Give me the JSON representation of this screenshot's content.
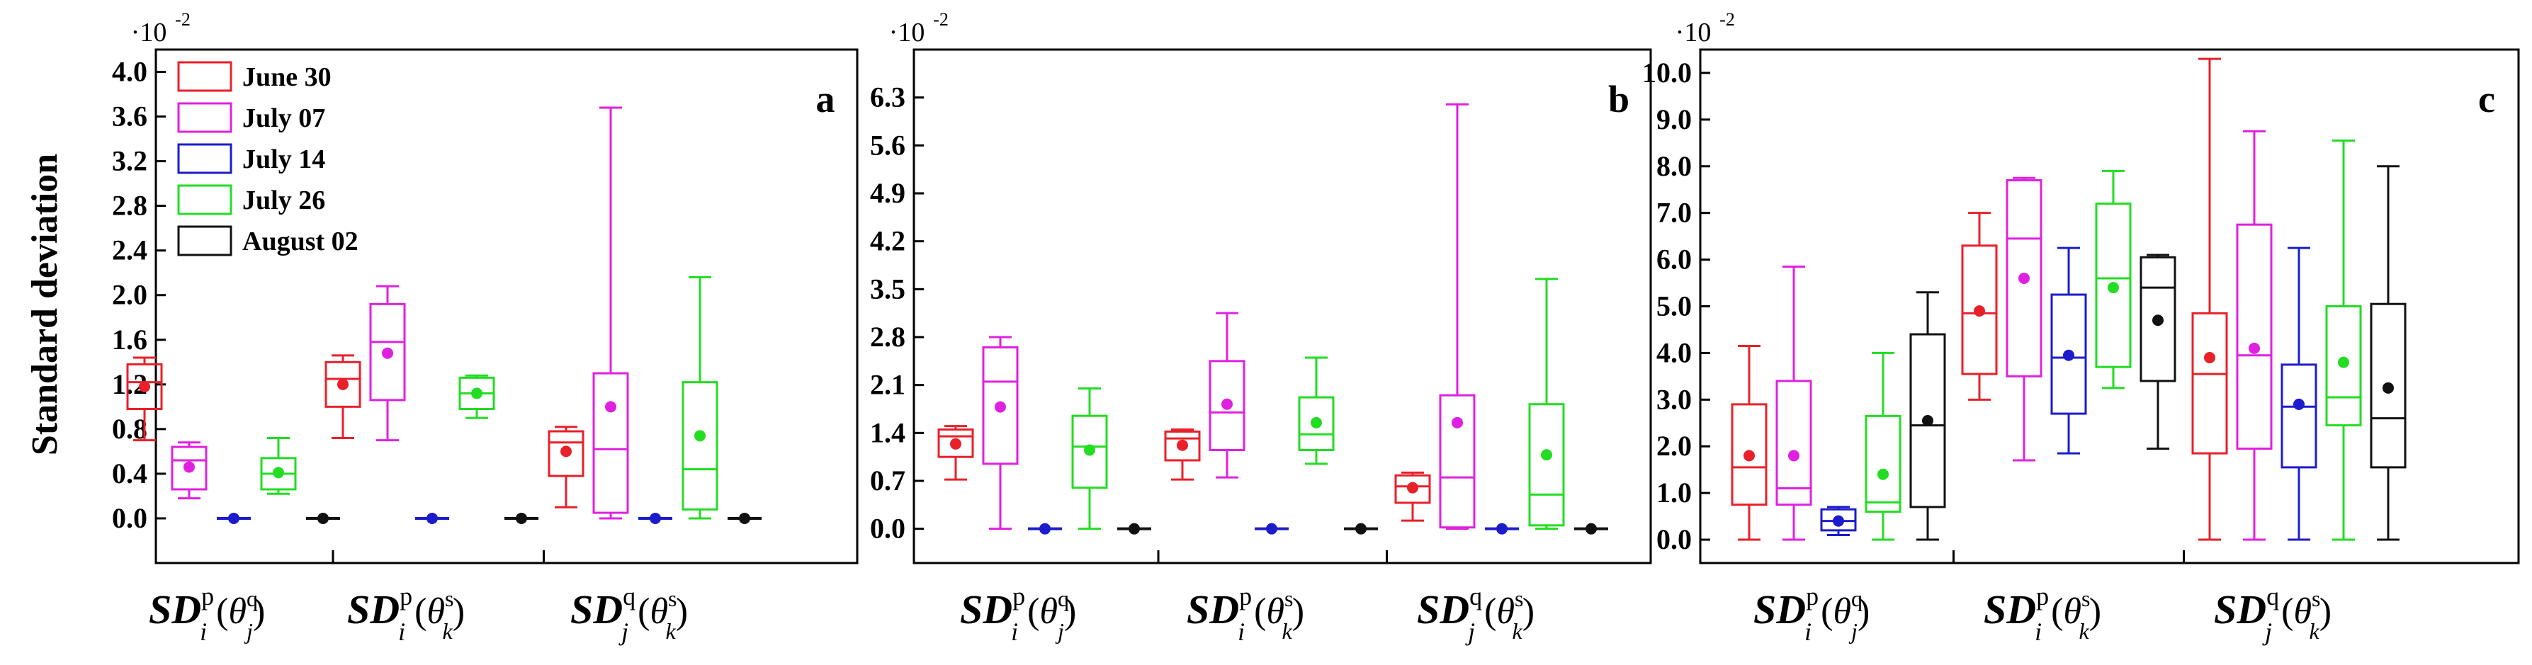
{
  "figure": {
    "ylabel": "Standard deviation",
    "exponent_label": "·10",
    "exponent_power": "-2",
    "groups": [
      {
        "main": "SD",
        "sup": "p",
        "sub": "i",
        "theta_sup": "q",
        "theta_sub": "j"
      },
      {
        "main": "SD",
        "sup": "p",
        "sub": "i",
        "theta_sup": "s",
        "theta_sub": "k"
      },
      {
        "main": "SD",
        "sup": "q",
        "sub": "j",
        "theta_sup": "s",
        "theta_sub": "k"
      }
    ]
  },
  "legend": [
    {
      "label": "June 30",
      "color": "#e8202a"
    },
    {
      "label": "July 07",
      "color": "#e020e0"
    },
    {
      "label": "July 14",
      "color": "#1c1ccc"
    },
    {
      "label": "July 26",
      "color": "#22dd22"
    },
    {
      "label": "August 02",
      "color": "#111111"
    }
  ],
  "chart_data": [
    {
      "type": "box",
      "panel_label": "a",
      "ylabel": "Standard deviation",
      "unit_multiplier": "10^-2",
      "ylim": [
        -0.4,
        4.2
      ],
      "yticks": [
        "0.0",
        "0.4",
        "0.8",
        "1.2",
        "1.6",
        "2.0",
        "2.4",
        "2.8",
        "3.2",
        "3.6",
        "4.0"
      ],
      "categories": [
        "SDip(θjq)",
        "SDip(θks)",
        "SDjq(θks)"
      ],
      "series": [
        {
          "name": "June 30",
          "boxes": [
            {
              "min": 0.7,
              "q1": 0.98,
              "median": 1.22,
              "q3": 1.38,
              "max": 1.44,
              "mean": 1.18
            },
            {
              "min": 0.72,
              "q1": 1.0,
              "median": 1.25,
              "q3": 1.4,
              "max": 1.46,
              "mean": 1.2
            },
            {
              "min": 0.1,
              "q1": 0.38,
              "median": 0.68,
              "q3": 0.78,
              "max": 0.82,
              "mean": 0.6
            }
          ]
        },
        {
          "name": "July 07",
          "boxes": [
            {
              "min": 0.18,
              "q1": 0.26,
              "median": 0.52,
              "q3": 0.64,
              "max": 0.68,
              "mean": 0.46
            },
            {
              "min": 0.7,
              "q1": 1.06,
              "median": 1.58,
              "q3": 1.92,
              "max": 2.08,
              "mean": 1.48
            },
            {
              "min": 0.0,
              "q1": 0.05,
              "median": 0.62,
              "q3": 1.3,
              "max": 3.68,
              "mean": 1.0
            }
          ]
        },
        {
          "name": "July 14",
          "boxes": [
            {
              "min": 0.0,
              "q1": 0.0,
              "median": 0.0,
              "q3": 0.0,
              "max": 0.0,
              "mean": 0.0
            },
            {
              "min": 0.0,
              "q1": 0.0,
              "median": 0.0,
              "q3": 0.0,
              "max": 0.0,
              "mean": 0.0
            },
            {
              "min": 0.0,
              "q1": 0.0,
              "median": 0.0,
              "q3": 0.0,
              "max": 0.0,
              "mean": 0.0
            }
          ]
        },
        {
          "name": "July 26",
          "boxes": [
            {
              "min": 0.22,
              "q1": 0.26,
              "median": 0.4,
              "q3": 0.54,
              "max": 0.72,
              "mean": 0.41
            },
            {
              "min": 0.9,
              "q1": 0.98,
              "median": 1.12,
              "q3": 1.26,
              "max": 1.28,
              "mean": 1.12
            },
            {
              "min": 0.0,
              "q1": 0.08,
              "median": 0.44,
              "q3": 1.22,
              "max": 2.16,
              "mean": 0.74
            }
          ]
        },
        {
          "name": "August 02",
          "boxes": [
            {
              "min": 0.0,
              "q1": 0.0,
              "median": 0.0,
              "q3": 0.0,
              "max": 0.0,
              "mean": 0.0
            },
            {
              "min": 0.0,
              "q1": 0.0,
              "median": 0.0,
              "q3": 0.0,
              "max": 0.0,
              "mean": 0.0
            },
            {
              "min": 0.0,
              "q1": 0.0,
              "median": 0.0,
              "q3": 0.0,
              "max": 0.0,
              "mean": 0.0
            }
          ]
        }
      ]
    },
    {
      "type": "box",
      "panel_label": "b",
      "unit_multiplier": "10^-2",
      "ylim": [
        -0.5,
        7.0
      ],
      "yticks": [
        "0.0",
        "0.7",
        "1.4",
        "2.1",
        "2.8",
        "3.5",
        "4.2",
        "4.9",
        "5.6",
        "6.3"
      ],
      "categories": [
        "SDip(θjq)",
        "SDip(θks)",
        "SDjq(θks)"
      ],
      "series": [
        {
          "name": "June 30",
          "boxes": [
            {
              "min": 0.72,
              "q1": 1.05,
              "median": 1.35,
              "q3": 1.45,
              "max": 1.5,
              "mean": 1.24
            },
            {
              "min": 0.72,
              "q1": 1.0,
              "median": 1.32,
              "q3": 1.42,
              "max": 1.45,
              "mean": 1.22
            },
            {
              "min": 0.12,
              "q1": 0.38,
              "median": 0.62,
              "q3": 0.78,
              "max": 0.82,
              "mean": 0.6
            }
          ]
        },
        {
          "name": "July 07",
          "boxes": [
            {
              "min": 0.0,
              "q1": 0.95,
              "median": 2.15,
              "q3": 2.65,
              "max": 2.8,
              "mean": 1.78
            },
            {
              "min": 0.75,
              "q1": 1.15,
              "median": 1.7,
              "q3": 2.45,
              "max": 3.15,
              "mean": 1.82
            },
            {
              "min": 0.0,
              "q1": 0.02,
              "median": 0.75,
              "q3": 1.95,
              "max": 6.2,
              "mean": 1.55
            }
          ]
        },
        {
          "name": "July 14",
          "boxes": [
            {
              "min": 0.0,
              "q1": 0.0,
              "median": 0.0,
              "q3": 0.0,
              "max": 0.0,
              "mean": 0.0
            },
            {
              "min": 0.0,
              "q1": 0.0,
              "median": 0.0,
              "q3": 0.0,
              "max": 0.0,
              "mean": 0.0
            },
            {
              "min": 0.0,
              "q1": 0.0,
              "median": 0.0,
              "q3": 0.0,
              "max": 0.0,
              "mean": 0.0
            }
          ]
        },
        {
          "name": "July 26",
          "boxes": [
            {
              "min": 0.0,
              "q1": 0.6,
              "median": 1.2,
              "q3": 1.65,
              "max": 2.05,
              "mean": 1.15
            },
            {
              "min": 0.95,
              "q1": 1.15,
              "median": 1.38,
              "q3": 1.92,
              "max": 2.5,
              "mean": 1.55
            },
            {
              "min": 0.0,
              "q1": 0.05,
              "median": 0.5,
              "q3": 1.82,
              "max": 3.65,
              "mean": 1.08
            }
          ]
        },
        {
          "name": "August 02",
          "boxes": [
            {
              "min": 0.0,
              "q1": 0.0,
              "median": 0.0,
              "q3": 0.0,
              "max": 0.0,
              "mean": 0.0
            },
            {
              "min": 0.0,
              "q1": 0.0,
              "median": 0.0,
              "q3": 0.0,
              "max": 0.0,
              "mean": 0.0
            },
            {
              "min": 0.0,
              "q1": 0.0,
              "median": 0.0,
              "q3": 0.0,
              "max": 0.0,
              "mean": 0.0
            }
          ]
        }
      ]
    },
    {
      "type": "box",
      "panel_label": "c",
      "unit_multiplier": "10^-2",
      "ylim": [
        -0.5,
        10.5
      ],
      "yticks": [
        "0.0",
        "1.0",
        "2.0",
        "3.0",
        "4.0",
        "5.0",
        "6.0",
        "7.0",
        "8.0",
        "9.0",
        "10.0"
      ],
      "categories": [
        "SDip(θjq)",
        "SDip(θks)",
        "SDjq(θks)"
      ],
      "series": [
        {
          "name": "June 30",
          "boxes": [
            {
              "min": 0.0,
              "q1": 0.75,
              "median": 1.55,
              "q3": 2.9,
              "max": 4.15,
              "mean": 1.8
            },
            {
              "min": 3.0,
              "q1": 3.55,
              "median": 4.85,
              "q3": 6.3,
              "max": 7.0,
              "mean": 4.9
            },
            {
              "min": 0.0,
              "q1": 1.85,
              "median": 3.55,
              "q3": 4.85,
              "max": 10.3,
              "mean": 3.9
            }
          ]
        },
        {
          "name": "July 07",
          "boxes": [
            {
              "min": 0.0,
              "q1": 0.75,
              "median": 1.1,
              "q3": 3.4,
              "max": 5.85,
              "mean": 1.8
            },
            {
              "min": 1.7,
              "q1": 3.5,
              "median": 6.45,
              "q3": 7.7,
              "max": 7.75,
              "mean": 5.6
            },
            {
              "min": 0.0,
              "q1": 1.95,
              "median": 3.95,
              "q3": 6.75,
              "max": 8.75,
              "mean": 4.1
            }
          ]
        },
        {
          "name": "July 14",
          "boxes": [
            {
              "min": 0.1,
              "q1": 0.2,
              "median": 0.4,
              "q3": 0.65,
              "max": 0.7,
              "mean": 0.4
            },
            {
              "min": 1.85,
              "q1": 2.7,
              "median": 3.9,
              "q3": 5.25,
              "max": 6.25,
              "mean": 3.95
            },
            {
              "min": 0.0,
              "q1": 1.55,
              "median": 2.85,
              "q3": 3.75,
              "max": 6.25,
              "mean": 2.9
            }
          ]
        },
        {
          "name": "July 26",
          "boxes": [
            {
              "min": 0.0,
              "q1": 0.6,
              "median": 0.8,
              "q3": 2.65,
              "max": 4.0,
              "mean": 1.4
            },
            {
              "min": 3.25,
              "q1": 3.7,
              "median": 5.6,
              "q3": 7.2,
              "max": 7.9,
              "mean": 5.4
            },
            {
              "min": 0.0,
              "q1": 2.45,
              "median": 3.05,
              "q3": 5.0,
              "max": 8.55,
              "mean": 3.8
            }
          ]
        },
        {
          "name": "August 02",
          "boxes": [
            {
              "min": 0.0,
              "q1": 0.7,
              "median": 2.45,
              "q3": 4.4,
              "max": 5.3,
              "mean": 2.55
            },
            {
              "min": 1.95,
              "q1": 3.4,
              "median": 5.4,
              "q3": 6.05,
              "max": 6.1,
              "mean": 4.7
            },
            {
              "min": 0.0,
              "q1": 1.55,
              "median": 2.6,
              "q3": 5.05,
              "max": 8.0,
              "mean": 3.25
            }
          ]
        }
      ]
    }
  ]
}
